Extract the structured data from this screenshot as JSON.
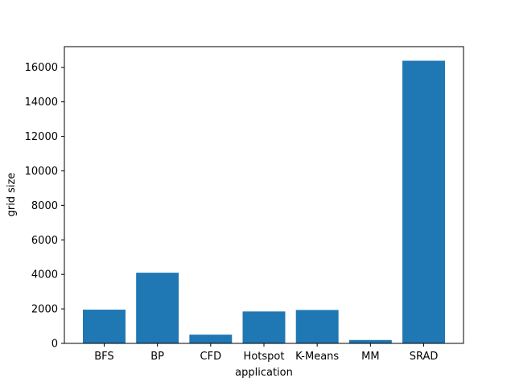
{
  "chart_data": {
    "type": "bar",
    "title": "",
    "xlabel": "application",
    "ylabel": "grid size",
    "categories": [
      "BFS",
      "BP",
      "CFD",
      "Hotspot",
      "K-Means",
      "MM",
      "SRAD"
    ],
    "values": [
      1954,
      4096,
      506,
      1849,
      1936,
      196,
      16384
    ],
    "ylim": [
      0,
      17200
    ],
    "yticks": [
      0,
      2000,
      4000,
      6000,
      8000,
      10000,
      12000,
      14000,
      16000
    ],
    "ytick_labels": [
      "0",
      "2000",
      "4000",
      "6000",
      "8000",
      "10000",
      "12000",
      "14000",
      "16000"
    ],
    "bar_color": "#1f77b4",
    "grid": false,
    "legend": "none"
  }
}
